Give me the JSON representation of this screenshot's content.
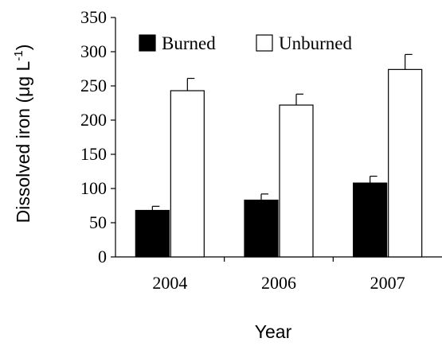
{
  "chart_data": {
    "type": "bar",
    "categories": [
      "2004",
      "2006",
      "2007"
    ],
    "series": [
      {
        "name": "Burned",
        "values": [
          68,
          83,
          108
        ],
        "errors": [
          6,
          9,
          10
        ],
        "color": "#000000"
      },
      {
        "name": "Unburned",
        "values": [
          243,
          222,
          274
        ],
        "errors": [
          18,
          16,
          22
        ],
        "color": "#ffffff"
      }
    ],
    "ylim": [
      0,
      350
    ],
    "yticks": [
      "0",
      "50",
      "100",
      "150",
      "200",
      "250",
      "300",
      "350"
    ],
    "xlabel": "Year",
    "ylabel": "Dissolved iron (μg L",
    "ylabel_sup": "-1",
    "ylabel_end": ")",
    "legend_position": "top"
  }
}
